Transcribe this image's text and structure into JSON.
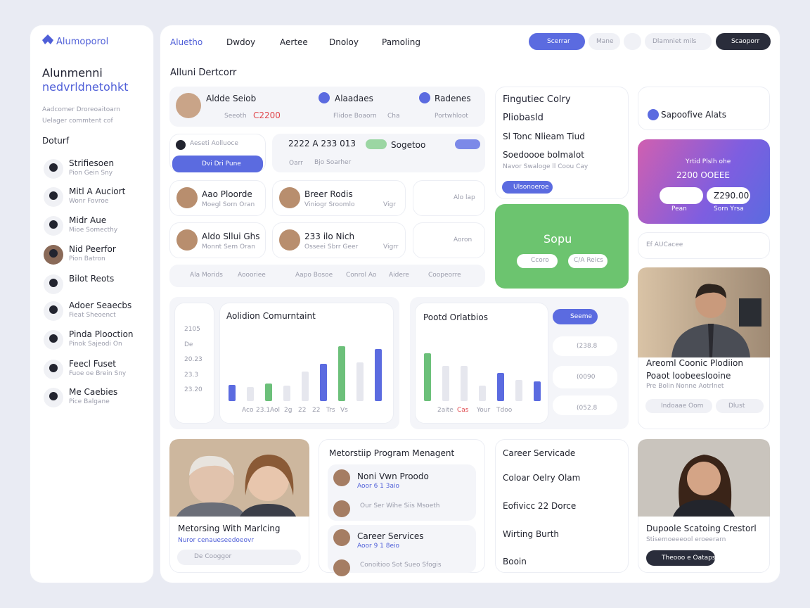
{
  "sidebar": {
    "brand": "Alumoporol",
    "heading": "Alunmenni",
    "heading_accent": "nedvrldnetohkt",
    "description": [
      "Aadcomer Droreoaitoarn",
      "Uelager commtent cof"
    ],
    "section": "Doturf",
    "people": [
      {
        "name": "Strifiesoen",
        "role": "Pion Gein Sny"
      },
      {
        "name": "Mitl A Auciort",
        "role": "Wonr Fovroe"
      },
      {
        "name": "Midr Aue",
        "role": "Mioe Somecthy"
      },
      {
        "name": "Nid Peerfor",
        "role": "Pion Batron"
      },
      {
        "name": "Bilot Reots"
      },
      {
        "name": "Adoer Seaecbs",
        "role": "Fieat Sheoenct"
      },
      {
        "name": "Pinda Plooction",
        "role": "Pinok Sajeodi On"
      },
      {
        "name": "Feecl Fuset",
        "role": "Fuoe oe Brein Sny"
      },
      {
        "name": "Me Caebies",
        "role": "Pice Balgane"
      }
    ]
  },
  "nav": {
    "tabs": [
      "Aluetho",
      "Dwdoy",
      "Aertee",
      "Dnoloy",
      "Pamoling"
    ],
    "buttons": [
      "Scerrar",
      "Mane",
      "Dlamniet mils",
      "Scaoporr"
    ]
  },
  "page_title": "Alluni Dertcorr",
  "summary": {
    "names": [
      "Aldde Seiob",
      "Alaadaes",
      "Radenes"
    ],
    "details": [
      "Seeoth",
      "C2200",
      "Flidoe Boaorn",
      "Cha",
      "Portwhloot"
    ]
  },
  "filter": {
    "select": "Aeseti Aolluoce",
    "button": "Dvi Dri Pune"
  },
  "status": {
    "code": "2222 A 233 013",
    "tag": "Sogetoo",
    "row": [
      "Oarr",
      "Bjo Soarher"
    ]
  },
  "profiles": [
    {
      "name": "Aao Ploorde",
      "sub": "Moegl Sorn Oran"
    },
    {
      "name": "Breer Rodis",
      "sub": "Viniogr Sroomlo",
      "extra": "Vigr"
    },
    {
      "name": "Alo lap"
    },
    {
      "name": "Aldo Sllui Ghs",
      "sub": "Monnt Sem Oran"
    },
    {
      "name": "233 ilo Nich",
      "sub": "Osseei Sbrr Geer",
      "extra": "Vigrr"
    },
    {
      "name": "Aoron"
    }
  ],
  "tags": [
    "Ala Morids",
    "Aoooriee",
    "Aapo Bosoe",
    "Conrol Ao",
    "Aidere",
    "Coopeorre"
  ],
  "feature": {
    "lines": [
      "Fingutiec Colry",
      "Pliobasld",
      "Sl Tonc Nlieam Tiud",
      "Soedoooe bolmalot",
      "Navor Swaloge ll Coou Cay"
    ],
    "pill": "Ulsonoeroe"
  },
  "green_card": {
    "title": "Sopu",
    "pills": [
      "Ccoro",
      "C/A Reics"
    ]
  },
  "alerts": "Sapoofive Alats",
  "promo": {
    "title": "Yrtid Plslh ohe",
    "amount": "2200 OOEEE",
    "button": "Z290.00",
    "foot": [
      "Pean",
      "Sorn Yrsa"
    ]
  },
  "access": "Ef AUCacee",
  "spotlight": {
    "name": "Areoml Coonic Plodiion",
    "role": "Poaot loobeeslooine",
    "note": "Pre Bolin Nonne Aotrlnet",
    "pills": [
      "Indoaae Oom",
      "Dlust"
    ]
  },
  "charts": [
    {
      "title": "Aolidion Comurntaint",
      "side": [
        "2105",
        "De",
        "20.23",
        "23.3",
        "23.20"
      ],
      "xlabels": [
        "Aco",
        "23.1",
        "Aol",
        "2g",
        "22",
        "22",
        "Trs",
        "Vs"
      ],
      "ylim": [
        0,
        100
      ],
      "bars": [
        {
          "value": 23,
          "color": "#5b6be0"
        },
        {
          "value": 20,
          "color": "#e6e7ee"
        },
        {
          "value": 25,
          "color": "#6cc07a"
        },
        {
          "value": 22,
          "color": "#e6e7ee"
        },
        {
          "value": 42,
          "color": "#e6e7ee"
        },
        {
          "value": 53,
          "color": "#5b6be0"
        },
        {
          "value": 78,
          "color": "#6cc07a"
        },
        {
          "value": 55,
          "color": "#e6e7ee"
        },
        {
          "value": 74,
          "color": "#5b6be0"
        }
      ]
    },
    {
      "title": "Pootd Orlatbios",
      "button": "Seeme",
      "side": [
        "(238.8",
        "(0090",
        "(052.8"
      ],
      "xlabels": [
        "2aite",
        "Cas",
        "Your",
        "Tdoo"
      ],
      "ylim": [
        0,
        100
      ],
      "bars": [
        {
          "value": 68,
          "color": "#6cc07a"
        },
        {
          "value": 50,
          "color": "#e6e7ee"
        },
        {
          "value": 50,
          "color": "#e6e7ee"
        },
        {
          "value": 22,
          "color": "#e6e7ee"
        },
        {
          "value": 40,
          "color": "#5b6be0"
        },
        {
          "value": 30,
          "color": "#e6e7ee"
        },
        {
          "value": 28,
          "color": "#5b6be0"
        }
      ]
    }
  ],
  "mentoring": {
    "title": "Metorsing With Marlcing",
    "sub": "Nuror cenaueseedoeovr",
    "select": "De Cooggor"
  },
  "program": {
    "title": "Metorstiip Program Menagent",
    "items": [
      {
        "name": "Noni Vwn Proodo",
        "sub": "Aoor 6 1 3aio"
      },
      {
        "name": "Our Ser Wihe Siis Msoeth"
      },
      {
        "name": "Career Services",
        "sub": "Aoor 9 1 8eio"
      },
      {
        "name": "Conoitioo Sot Sueo Sfogis"
      }
    ]
  },
  "career": {
    "title": "Career Servicade",
    "items": [
      "Coloar Oelry Olam",
      "Eofivicc 22 Dorce",
      "Wirting Burth",
      "Booin"
    ]
  },
  "featured": {
    "name": "Dupoole Scatoing Crestorl",
    "sub": "Stisemoeeeool eroeerarn",
    "button": "Theooo e Oataps"
  }
}
